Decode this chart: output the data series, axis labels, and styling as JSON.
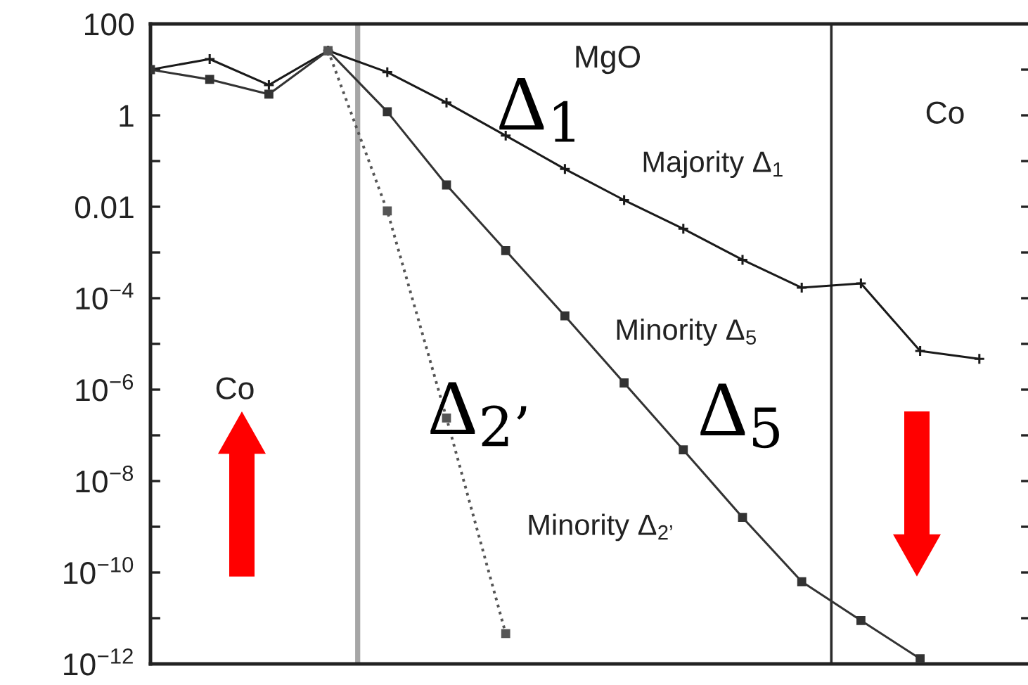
{
  "chart_data": {
    "type": "line",
    "log": true,
    "categories": [
      null,
      null,
      null,
      null,
      null,
      null,
      null,
      null,
      null,
      null,
      null,
      null,
      null,
      null,
      null
    ],
    "ylim": [
      1e-12,
      100
    ],
    "yticks": [
      100,
      {
        "value": 10,
        "label": null
      },
      1,
      {
        "value": 0.1,
        "label": null
      },
      0.01,
      {
        "value": 0.001,
        "label": null
      },
      {
        "value": 0.0001,
        "label": "10$^{−4}$"
      },
      {
        "value": 1e-05,
        "label": null
      },
      {
        "value": 1e-06,
        "label": "10$^{−6}$"
      },
      {
        "value": 1e-07,
        "label": null
      },
      {
        "value": 1e-08,
        "label": "10$^{−8}$"
      },
      {
        "value": 1e-09,
        "label": null
      },
      {
        "value": 1e-10,
        "label": "10$^{−10}$"
      },
      {
        "value": 1e-11,
        "label": null
      },
      {
        "value": 1e-12,
        "label": "10$^{−12}$"
      }
    ],
    "tick_labels": "y",
    "grid": false,
    "legend": false,
    "series": [
      {
        "name": "Majority Δ$_{1}$",
        "color": "#1a1a1a",
        "marker": "cross",
        "line_style": "solid",
        "values": [
          10,
          17,
          4.6,
          26,
          8.8,
          1.9,
          0.36,
          0.067,
          0.014,
          0.0033,
          0.00069,
          0.00017,
          0.00021,
          7e-06,
          4.7e-06
        ]
      },
      {
        "name": "Minority Δ$_{5}$",
        "color": "#333333",
        "marker": "square",
        "line_style": "solid",
        "values": [
          10,
          6.1,
          2.9,
          26,
          1.2,
          0.03,
          0.0011,
          4.1e-05,
          1.4e-06,
          4.8e-08,
          1.6e-09,
          6.3e-11,
          8.9e-12,
          1.3e-12,
          null
        ]
      },
      {
        "name": "Minority Δ$_{2’}$",
        "color": "#555555",
        "marker": "square",
        "line_style": "dotted",
        "values": [
          null,
          null,
          null,
          26,
          0.0081,
          2.4e-07,
          4.6e-12,
          null,
          null,
          null,
          null,
          null,
          null,
          null,
          null
        ]
      }
    ],
    "annotations": [
      "MgO",
      "Co",
      "Co",
      "Δ$_{1}$",
      "Δ$_{2’}$",
      "Δ$_{5}$"
    ]
  }
}
